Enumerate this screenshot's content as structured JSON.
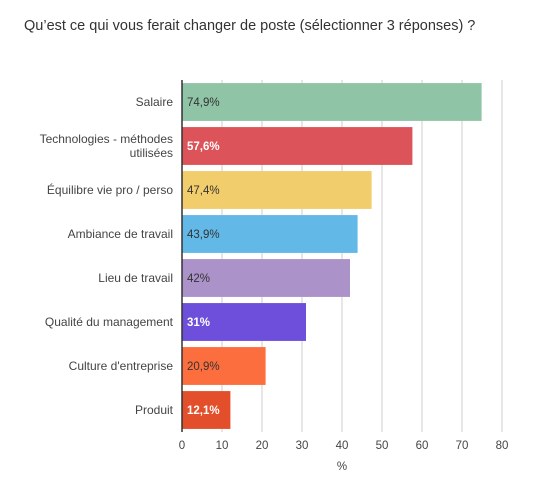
{
  "chart_data": {
    "type": "bar",
    "orientation": "horizontal",
    "title": "Qu’est ce qui vous ferait changer de poste (sélectionner 3 réponses) ?",
    "xlabel": "%",
    "ylabel": "",
    "xlim": [
      0,
      80
    ],
    "ticks": [
      0,
      10,
      20,
      30,
      40,
      50,
      60,
      70,
      80
    ],
    "grid": true,
    "legend": "none",
    "categories": [
      [
        "Salaire"
      ],
      [
        "Technologies - méthodes",
        "utilisées"
      ],
      [
        "Équilibre vie pro / perso"
      ],
      [
        "Ambiance de travail"
      ],
      [
        "Lieu de travail"
      ],
      [
        "Qualité du management"
      ],
      [
        "Culture d'entreprise"
      ],
      [
        "Produit"
      ]
    ],
    "values": [
      74.9,
      57.6,
      47.4,
      43.9,
      42,
      31,
      20.9,
      12.1
    ],
    "value_labels": [
      "74,9%",
      "57,6%",
      "47,4%",
      "43,9%",
      "42%",
      "31%",
      "20,9%",
      "12,1%"
    ],
    "colors": [
      "#8fc4a6",
      "#dc5459",
      "#f1cd6c",
      "#62b9e8",
      "#ab92c9",
      "#6d4fdc",
      "#fd6e3e",
      "#e34f2b"
    ],
    "label_colors": [
      "#333333",
      "#ffffff",
      "#333333",
      "#333333",
      "#333333",
      "#ffffff",
      "#333333",
      "#ffffff"
    ],
    "label_bold": [
      false,
      true,
      false,
      false,
      false,
      true,
      false,
      true
    ]
  }
}
